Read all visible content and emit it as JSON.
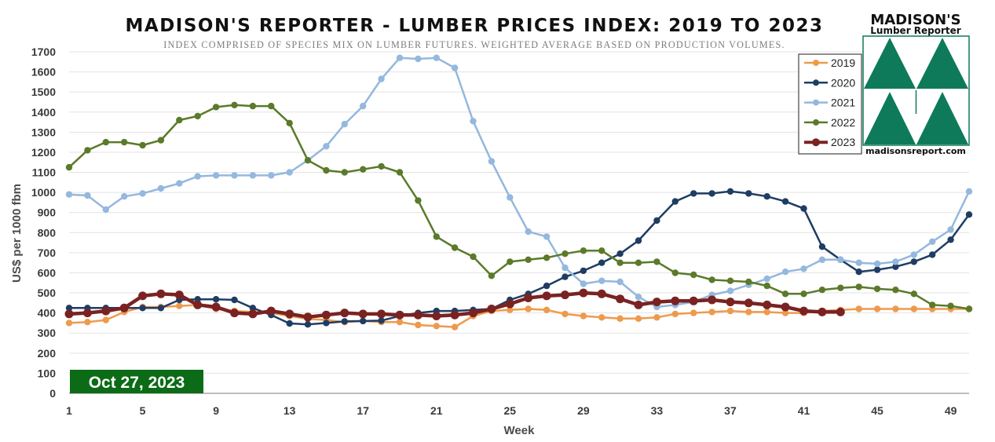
{
  "chart_data": {
    "type": "line",
    "title": "MADISON'S REPORTER - LUMBER PRICES INDEX: 2019 TO 2023",
    "subtitle": "INDEX COMPRISED OF SPECIES MIX ON LUMBER FUTURES. WEIGHTED AVERAGE BASED ON PRODUCTION VOLUMES.",
    "xlabel": "Week",
    "ylabel": "US$ per 1000 fbm",
    "xlim": [
      1,
      50
    ],
    "ylim": [
      0,
      1700
    ],
    "xticks": [
      1,
      5,
      9,
      13,
      17,
      21,
      25,
      29,
      33,
      37,
      41,
      45,
      49
    ],
    "yticks": [
      0,
      100,
      200,
      300,
      400,
      500,
      600,
      700,
      800,
      900,
      1000,
      1100,
      1200,
      1300,
      1400,
      1500,
      1600,
      1700
    ],
    "grid": "horizontal",
    "legend_position": "top-right",
    "date_label": "Oct 27, 2023",
    "series": [
      {
        "name": "2019",
        "color": "#ee9a4d",
        "values": [
          350,
          355,
          365,
          405,
          430,
          430,
          435,
          440,
          420,
          410,
          405,
          400,
          385,
          370,
          365,
          355,
          360,
          355,
          355,
          340,
          335,
          330,
          385,
          410,
          415,
          420,
          415,
          395,
          385,
          378,
          372,
          372,
          378,
          395,
          400,
          405,
          410,
          405,
          405,
          400,
          400,
          410,
          415,
          420,
          420,
          420,
          420,
          420,
          420,
          420
        ]
      },
      {
        "name": "2020",
        "color": "#1f3d63",
        "values": [
          425,
          425,
          425,
          425,
          425,
          425,
          465,
          468,
          468,
          465,
          425,
          390,
          348,
          343,
          350,
          358,
          360,
          362,
          385,
          400,
          410,
          410,
          415,
          420,
          465,
          495,
          535,
          580,
          610,
          650,
          695,
          760,
          860,
          955,
          995,
          995,
          1005,
          995,
          980,
          955,
          920,
          730,
          665,
          605,
          615,
          630,
          655,
          690,
          765,
          890
        ]
      },
      {
        "name": "2021",
        "color": "#94b8de",
        "values": [
          990,
          985,
          915,
          980,
          995,
          1020,
          1045,
          1080,
          1085,
          1085,
          1085,
          1085,
          1100,
          1160,
          1230,
          1340,
          1430,
          1565,
          1670,
          1665,
          1670,
          1620,
          1355,
          1155,
          975,
          805,
          780,
          625,
          545,
          560,
          555,
          480,
          430,
          440,
          455,
          490,
          510,
          540,
          570,
          605,
          620,
          665,
          665,
          650,
          645,
          655,
          690,
          755,
          815,
          1005
        ]
      },
      {
        "name": "2022",
        "color": "#5b7a2a",
        "values": [
          1125,
          1210,
          1250,
          1250,
          1235,
          1260,
          1360,
          1380,
          1425,
          1435,
          1430,
          1430,
          1345,
          1160,
          1110,
          1100,
          1115,
          1130,
          1100,
          960,
          780,
          725,
          680,
          585,
          655,
          665,
          675,
          695,
          710,
          710,
          650,
          650,
          655,
          600,
          590,
          565,
          560,
          555,
          535,
          495,
          495,
          515,
          525,
          530,
          520,
          515,
          495,
          440,
          435,
          420
        ]
      },
      {
        "name": "2023",
        "color": "#7a2222",
        "values": [
          395,
          400,
          410,
          425,
          485,
          495,
          490,
          440,
          430,
          400,
          395,
          410,
          395,
          380,
          390,
          400,
          395,
          395,
          390,
          390,
          385,
          390,
          400,
          420,
          445,
          475,
          485,
          490,
          500,
          495,
          470,
          440,
          455,
          460,
          460,
          465,
          455,
          450,
          440,
          430,
          410,
          405,
          405
        ]
      }
    ]
  },
  "logo": {
    "name_line1": "MADISON'S",
    "name_line2": "Lumber Reporter",
    "website": "madisonsreport.com",
    "color": "#0e7a5a"
  }
}
